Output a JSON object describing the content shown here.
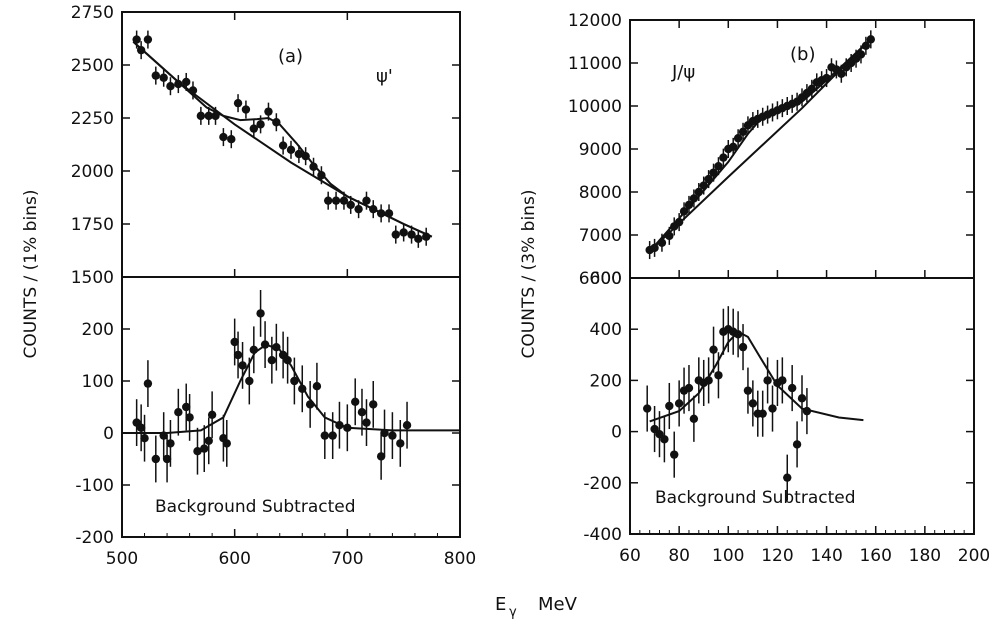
{
  "chart_data": [
    {
      "type": "scatter",
      "panel": "(a)",
      "label": "ψ'",
      "ylabel": "COUNTS / (1% bins)",
      "xlim": [
        500,
        800
      ],
      "xticks": [
        500,
        600,
        700,
        800
      ],
      "top": {
        "ylim": [
          1500,
          2750
        ],
        "yticks": [
          1500,
          1750,
          2000,
          2250,
          2500,
          2750
        ],
        "points": [
          [
            513,
            2620
          ],
          [
            517,
            2570
          ],
          [
            523,
            2620
          ],
          [
            530,
            2450
          ],
          [
            537,
            2440
          ],
          [
            543,
            2400
          ],
          [
            550,
            2410
          ],
          [
            557,
            2420
          ],
          [
            563,
            2380
          ],
          [
            570,
            2260
          ],
          [
            577,
            2260
          ],
          [
            583,
            2260
          ],
          [
            590,
            2160
          ],
          [
            597,
            2150
          ],
          [
            603,
            2320
          ],
          [
            610,
            2290
          ],
          [
            617,
            2200
          ],
          [
            623,
            2220
          ],
          [
            630,
            2280
          ],
          [
            637,
            2230
          ],
          [
            643,
            2120
          ],
          [
            650,
            2100
          ],
          [
            657,
            2080
          ],
          [
            663,
            2070
          ],
          [
            670,
            2020
          ],
          [
            677,
            1980
          ],
          [
            683,
            1860
          ],
          [
            690,
            1860
          ],
          [
            697,
            1860
          ],
          [
            703,
            1840
          ],
          [
            710,
            1820
          ],
          [
            717,
            1860
          ],
          [
            723,
            1820
          ],
          [
            730,
            1800
          ],
          [
            737,
            1800
          ],
          [
            743,
            1700
          ],
          [
            750,
            1710
          ],
          [
            757,
            1700
          ],
          [
            763,
            1680
          ],
          [
            770,
            1690
          ]
        ],
        "curves": [
          {
            "name": "background",
            "points": [
              [
                510,
                2610
              ],
              [
                550,
                2420
              ],
              [
                600,
                2220
              ],
              [
                650,
                2040
              ],
              [
                700,
                1880
              ],
              [
                750,
                1750
              ],
              [
                775,
                1690
              ]
            ]
          },
          {
            "name": "fit",
            "points": [
              [
                510,
                2610
              ],
              [
                550,
                2420
              ],
              [
                575,
                2300
              ],
              [
                590,
                2260
              ],
              [
                605,
                2240
              ],
              [
                620,
                2245
              ],
              [
                630,
                2250
              ],
              [
                640,
                2220
              ],
              [
                655,
                2130
              ],
              [
                670,
                2030
              ],
              [
                685,
                1940
              ],
              [
                700,
                1880
              ],
              [
                750,
                1750
              ],
              [
                775,
                1690
              ]
            ]
          }
        ]
      },
      "bottom": {
        "ylim": [
          -200,
          300
        ],
        "yticks": [
          -200,
          -100,
          0,
          100,
          200
        ],
        "annotation": "Background Subtracted",
        "points": [
          [
            513,
            20
          ],
          [
            517,
            10
          ],
          [
            520,
            -10
          ],
          [
            523,
            95
          ],
          [
            530,
            -50
          ],
          [
            537,
            -5
          ],
          [
            540,
            -50
          ],
          [
            543,
            -20
          ],
          [
            550,
            40
          ],
          [
            557,
            50
          ],
          [
            560,
            30
          ],
          [
            567,
            -35
          ],
          [
            573,
            -30
          ],
          [
            577,
            -15
          ],
          [
            580,
            35
          ],
          [
            590,
            -10
          ],
          [
            593,
            -20
          ],
          [
            600,
            175
          ],
          [
            603,
            150
          ],
          [
            607,
            130
          ],
          [
            613,
            100
          ],
          [
            617,
            160
          ],
          [
            623,
            230
          ],
          [
            627,
            170
          ],
          [
            633,
            140
          ],
          [
            637,
            165
          ],
          [
            643,
            150
          ],
          [
            647,
            140
          ],
          [
            653,
            100
          ],
          [
            660,
            85
          ],
          [
            667,
            55
          ],
          [
            673,
            90
          ],
          [
            680,
            -5
          ],
          [
            687,
            -5
          ],
          [
            693,
            15
          ],
          [
            700,
            10
          ],
          [
            707,
            60
          ],
          [
            713,
            40
          ],
          [
            717,
            20
          ],
          [
            723,
            55
          ],
          [
            730,
            -45
          ],
          [
            733,
            0
          ],
          [
            740,
            -5
          ],
          [
            747,
            -20
          ],
          [
            753,
            15
          ]
        ],
        "curve": [
          [
            500,
            0
          ],
          [
            540,
            0
          ],
          [
            570,
            5
          ],
          [
            590,
            30
          ],
          [
            605,
            100
          ],
          [
            618,
            155
          ],
          [
            628,
            170
          ],
          [
            640,
            160
          ],
          [
            650,
            130
          ],
          [
            665,
            70
          ],
          [
            680,
            30
          ],
          [
            700,
            10
          ],
          [
            740,
            5
          ],
          [
            800,
            5
          ]
        ]
      }
    },
    {
      "type": "scatter",
      "panel": "(b)",
      "label": "J/ψ",
      "ylabel": "COUNTS / (3% bins)",
      "xlim": [
        60,
        200
      ],
      "xticks": [
        60,
        80,
        100,
        120,
        140,
        160,
        180,
        200
      ],
      "top": {
        "ylim": [
          6000,
          12000
        ],
        "yticks": [
          6000,
          7000,
          8000,
          9000,
          10000,
          11000,
          12000
        ],
        "points": [
          [
            68,
            6650
          ],
          [
            70,
            6700
          ],
          [
            73,
            6820
          ],
          [
            76,
            6980
          ],
          [
            78,
            7200
          ],
          [
            80,
            7300
          ],
          [
            82,
            7550
          ],
          [
            84,
            7700
          ],
          [
            86,
            7850
          ],
          [
            88,
            8000
          ],
          [
            90,
            8150
          ],
          [
            92,
            8300
          ],
          [
            94,
            8450
          ],
          [
            96,
            8600
          ],
          [
            98,
            8800
          ],
          [
            100,
            9000
          ],
          [
            102,
            9050
          ],
          [
            104,
            9250
          ],
          [
            106,
            9400
          ],
          [
            108,
            9550
          ],
          [
            110,
            9650
          ],
          [
            112,
            9700
          ],
          [
            114,
            9750
          ],
          [
            116,
            9800
          ],
          [
            118,
            9850
          ],
          [
            120,
            9900
          ],
          [
            122,
            9950
          ],
          [
            124,
            10000
          ],
          [
            126,
            10050
          ],
          [
            128,
            10100
          ],
          [
            130,
            10200
          ],
          [
            132,
            10300
          ],
          [
            134,
            10400
          ],
          [
            136,
            10550
          ],
          [
            138,
            10600
          ],
          [
            140,
            10650
          ],
          [
            142,
            10900
          ],
          [
            144,
            10850
          ],
          [
            146,
            10750
          ],
          [
            148,
            10900
          ],
          [
            150,
            11000
          ],
          [
            152,
            11100
          ],
          [
            154,
            11200
          ],
          [
            156,
            11400
          ],
          [
            158,
            11550
          ]
        ],
        "curves": [
          {
            "name": "background",
            "points": [
              [
                68,
                6620
              ],
              [
                100,
                8350
              ],
              [
                130,
                9950
              ],
              [
                157,
                11500
              ]
            ]
          },
          {
            "name": "fit",
            "points": [
              [
                68,
                6620
              ],
              [
                90,
                8030
              ],
              [
                100,
                8700
              ],
              [
                108,
                9350
              ],
              [
                114,
                9750
              ],
              [
                120,
                9900
              ],
              [
                130,
                10100
              ],
              [
                140,
                10600
              ],
              [
                157,
                11500
              ]
            ]
          }
        ]
      },
      "bottom": {
        "ylim": [
          -400,
          600
        ],
        "yticks": [
          -400,
          -200,
          0,
          200,
          400,
          600
        ],
        "annotation": "Background Subtracted",
        "points": [
          [
            67,
            90
          ],
          [
            70,
            10
          ],
          [
            72,
            -10
          ],
          [
            74,
            -30
          ],
          [
            76,
            100
          ],
          [
            78,
            -90
          ],
          [
            80,
            110
          ],
          [
            82,
            160
          ],
          [
            84,
            170
          ],
          [
            86,
            50
          ],
          [
            88,
            200
          ],
          [
            90,
            190
          ],
          [
            92,
            200
          ],
          [
            94,
            320
          ],
          [
            96,
            220
          ],
          [
            98,
            390
          ],
          [
            100,
            400
          ],
          [
            102,
            390
          ],
          [
            104,
            380
          ],
          [
            106,
            330
          ],
          [
            108,
            160
          ],
          [
            110,
            110
          ],
          [
            112,
            70
          ],
          [
            114,
            70
          ],
          [
            116,
            200
          ],
          [
            118,
            90
          ],
          [
            120,
            190
          ],
          [
            122,
            200
          ],
          [
            124,
            -180
          ],
          [
            126,
            170
          ],
          [
            128,
            -50
          ],
          [
            130,
            130
          ],
          [
            132,
            80
          ]
        ],
        "curve": [
          [
            68,
            40
          ],
          [
            80,
            80
          ],
          [
            88,
            150
          ],
          [
            95,
            260
          ],
          [
            100,
            350
          ],
          [
            104,
            390
          ],
          [
            108,
            370
          ],
          [
            113,
            290
          ],
          [
            120,
            180
          ],
          [
            130,
            90
          ],
          [
            145,
            55
          ],
          [
            155,
            45
          ]
        ]
      }
    }
  ],
  "shared_xlabel": "E",
  "shared_xlabel_sub": "γ",
  "shared_xlabel_unit": "MeV"
}
